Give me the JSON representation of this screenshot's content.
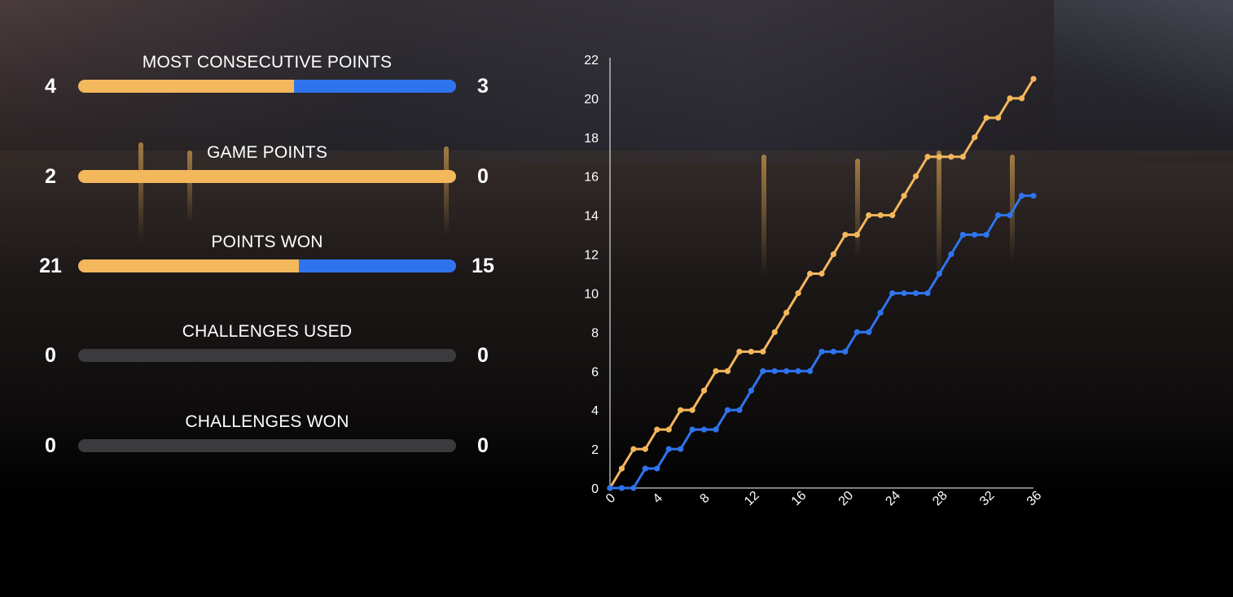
{
  "colors": {
    "player_a": "#f3b75c",
    "player_b": "#2f74ee",
    "track": "#3b3b3d"
  },
  "stats": [
    {
      "title": "MOST CONSECUTIVE POINTS",
      "left": "4",
      "right": "3",
      "left_value": 4,
      "right_value": 3
    },
    {
      "title": "GAME POINTS",
      "left": "2",
      "right": "0",
      "left_value": 2,
      "right_value": 0
    },
    {
      "title": "POINTS WON",
      "left": "21",
      "right": "15",
      "left_value": 21,
      "right_value": 15
    },
    {
      "title": "CHALLENGES USED",
      "left": "0",
      "right": "0",
      "left_value": 0,
      "right_value": 0
    },
    {
      "title": "CHALLENGES WON",
      "left": "0",
      "right": "0",
      "left_value": 0,
      "right_value": 0
    }
  ],
  "chart_data": {
    "type": "line",
    "title": "",
    "xlabel": "",
    "ylabel": "",
    "xlim": [
      0,
      36
    ],
    "ylim": [
      0,
      22
    ],
    "xticks": [
      0,
      4,
      8,
      12,
      16,
      20,
      24,
      28,
      32,
      36
    ],
    "yticks": [
      0,
      2,
      4,
      6,
      8,
      10,
      12,
      14,
      16,
      18,
      20,
      22
    ],
    "grid": false,
    "series": [
      {
        "color": "#f3b75c",
        "x": [
          0,
          1,
          2,
          3,
          4,
          5,
          6,
          7,
          8,
          9,
          10,
          11,
          12,
          13,
          14,
          15,
          16,
          17,
          18,
          19,
          20,
          21,
          22,
          23,
          24,
          25,
          26,
          27,
          28,
          29,
          30,
          31,
          32,
          33,
          34,
          35,
          36
        ],
        "y": [
          0,
          1,
          2,
          2,
          3,
          3,
          4,
          4,
          5,
          6,
          6,
          7,
          7,
          7,
          8,
          9,
          10,
          11,
          11,
          12,
          13,
          13,
          14,
          14,
          14,
          15,
          16,
          17,
          17,
          17,
          17,
          18,
          19,
          19,
          20,
          20,
          21
        ]
      },
      {
        "color": "#2f74ee",
        "x": [
          0,
          1,
          2,
          3,
          4,
          5,
          6,
          7,
          8,
          9,
          10,
          11,
          12,
          13,
          14,
          15,
          16,
          17,
          18,
          19,
          20,
          21,
          22,
          23,
          24,
          25,
          26,
          27,
          28,
          29,
          30,
          31,
          32,
          33,
          34,
          35,
          36
        ],
        "y": [
          0,
          0,
          0,
          1,
          1,
          2,
          2,
          3,
          3,
          3,
          4,
          4,
          5,
          6,
          6,
          6,
          6,
          6,
          7,
          7,
          7,
          8,
          8,
          9,
          10,
          10,
          10,
          10,
          11,
          12,
          13,
          13,
          13,
          14,
          14,
          15,
          15
        ]
      }
    ]
  }
}
